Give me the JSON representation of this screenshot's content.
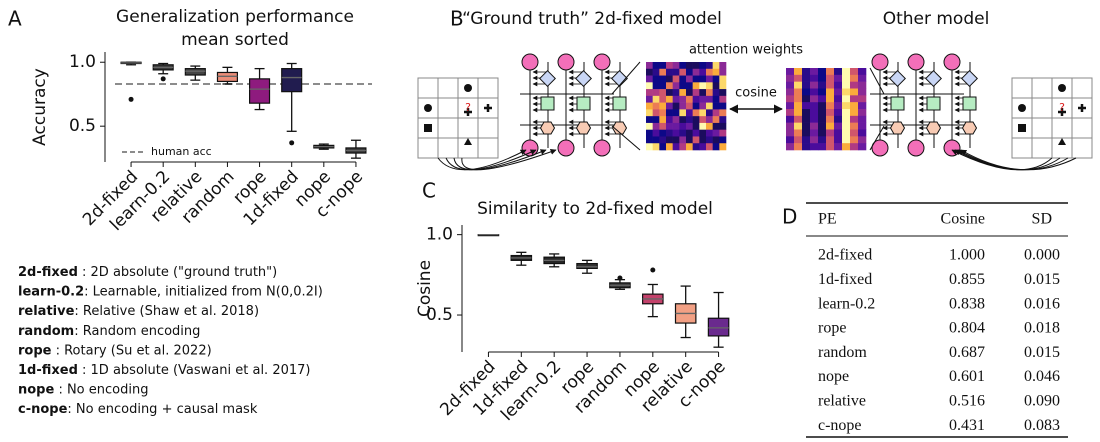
{
  "chart_data": [
    {
      "type": "box",
      "panel": "A",
      "title": "Generalization performance",
      "subtitle": "mean sorted",
      "ylabel": "Accuracy",
      "categories": [
        "2d-fixed",
        "learn-0.2",
        "relative",
        "random",
        "rope",
        "1d-fixed",
        "nope",
        "c-nope"
      ],
      "boxes": [
        {
          "min": 0.98,
          "q1": 0.99,
          "median": 0.995,
          "q3": 1.0,
          "max": 1.0,
          "outliers": [
            0.71
          ],
          "color": "#2b2b2b"
        },
        {
          "min": 0.91,
          "q1": 0.94,
          "median": 0.96,
          "q3": 0.98,
          "max": 0.99,
          "outliers": [
            0.87
          ],
          "color": "#3a3a3a"
        },
        {
          "min": 0.86,
          "q1": 0.9,
          "median": 0.93,
          "q3": 0.95,
          "max": 0.97,
          "outliers": [],
          "color": "#444444"
        },
        {
          "min": 0.83,
          "q1": 0.85,
          "median": 0.89,
          "q3": 0.92,
          "max": 0.96,
          "outliers": [],
          "color": "#ea8d78"
        },
        {
          "min": 0.63,
          "q1": 0.68,
          "median": 0.79,
          "q3": 0.87,
          "max": 0.95,
          "outliers": [],
          "color": "#8e1b7e"
        },
        {
          "min": 0.46,
          "q1": 0.77,
          "median": 0.88,
          "q3": 0.95,
          "max": 0.99,
          "outliers": [
            0.37
          ],
          "color": "#211c4f"
        },
        {
          "min": 0.32,
          "q1": 0.33,
          "median": 0.34,
          "q3": 0.35,
          "max": 0.36,
          "outliers": [],
          "color": "#2b2b2b"
        },
        {
          "min": 0.25,
          "q1": 0.29,
          "median": 0.31,
          "q3": 0.33,
          "max": 0.39,
          "outliers": [],
          "color": "#3a3a3a"
        }
      ],
      "reference_line": {
        "value": 0.83,
        "label": "human acc",
        "color": "#8c8c8c"
      },
      "ylim": [
        0.22,
        1.08
      ],
      "yticks": [
        0.5,
        {
          "value": 1,
          "label": "1.0"
        }
      ]
    },
    {
      "type": "box",
      "panel": "C",
      "title": "Similarity to 2d-fixed model",
      "ylabel": "Cosine",
      "categories": [
        "2d-fixed",
        "1d-fixed",
        "learn-0.2",
        "rope",
        "random",
        "nope",
        "relative",
        "c-nope"
      ],
      "boxes": [
        {
          "min": 1,
          "q1": 1,
          "median": 1,
          "q3": 1,
          "max": 1,
          "outliers": [],
          "color": "#111111"
        },
        {
          "min": 0.81,
          "q1": 0.84,
          "median": 0.855,
          "q3": 0.87,
          "max": 0.89,
          "outliers": [],
          "color": "#222222"
        },
        {
          "min": 0.8,
          "q1": 0.82,
          "median": 0.84,
          "q3": 0.86,
          "max": 0.88,
          "outliers": [],
          "color": "#262626"
        },
        {
          "min": 0.76,
          "q1": 0.79,
          "median": 0.8,
          "q3": 0.82,
          "max": 0.84,
          "outliers": [],
          "color": "#333333"
        },
        {
          "min": 0.66,
          "q1": 0.67,
          "median": 0.685,
          "q3": 0.7,
          "max": 0.72,
          "outliers": [
            0.73
          ],
          "color": "#333333"
        },
        {
          "min": 0.49,
          "q1": 0.57,
          "median": 0.6,
          "q3": 0.63,
          "max": 0.69,
          "outliers": [
            0.78
          ],
          "color": "#c3426b"
        },
        {
          "min": 0.36,
          "q1": 0.45,
          "median": 0.51,
          "q3": 0.57,
          "max": 0.68,
          "outliers": [],
          "color": "#f2a084"
        },
        {
          "min": 0.3,
          "q1": 0.37,
          "median": 0.42,
          "q3": 0.48,
          "max": 0.64,
          "outliers": [],
          "color": "#6a2a8e"
        }
      ],
      "ylim": [
        0.27,
        1.06
      ],
      "yticks": [
        0.5,
        {
          "value": 1,
          "label": "1.0"
        }
      ]
    }
  ],
  "legend_text": [
    {
      "term": "2d-fixed",
      "desc": " : 2D absolute (\"ground truth\")"
    },
    {
      "term": "learn-0.2",
      "desc": ": Learnable, initialized from N(0,0.2I)"
    },
    {
      "term": "relative",
      "desc": ": Relative (Shaw et al. 2018)"
    },
    {
      "term": "random",
      "desc": ": Random encoding"
    },
    {
      "term": "rope",
      "desc": " : Rotary (Su et al. 2022)"
    },
    {
      "term": "1d-fixed",
      "desc": " : 1D absolute (Vaswani et al. 2017)"
    },
    {
      "term": "nope",
      "desc": " : No encoding"
    },
    {
      "term": "c-nope",
      "desc": ": No encoding + causal mask"
    }
  ],
  "diagram": {
    "panel": "B",
    "left_title": "“Ground truth” 2d-fixed model",
    "right_title": "Other model",
    "heatmap_label": "attention weights",
    "compare_label": "cosine",
    "query_mark": "?"
  },
  "table": {
    "panel": "D",
    "header": [
      "PE",
      "Cosine",
      "SD"
    ],
    "rows": [
      [
        "2d-fixed",
        "1.000",
        "0.000"
      ],
      [
        "1d-fixed",
        "0.855",
        "0.015"
      ],
      [
        "learn-0.2",
        "0.838",
        "0.016"
      ],
      [
        "rope",
        "0.804",
        "0.018"
      ],
      [
        "random",
        "0.687",
        "0.015"
      ],
      [
        "nope",
        "0.601",
        "0.046"
      ],
      [
        "relative",
        "0.516",
        "0.090"
      ],
      [
        "c-nope",
        "0.431",
        "0.083"
      ]
    ]
  }
}
